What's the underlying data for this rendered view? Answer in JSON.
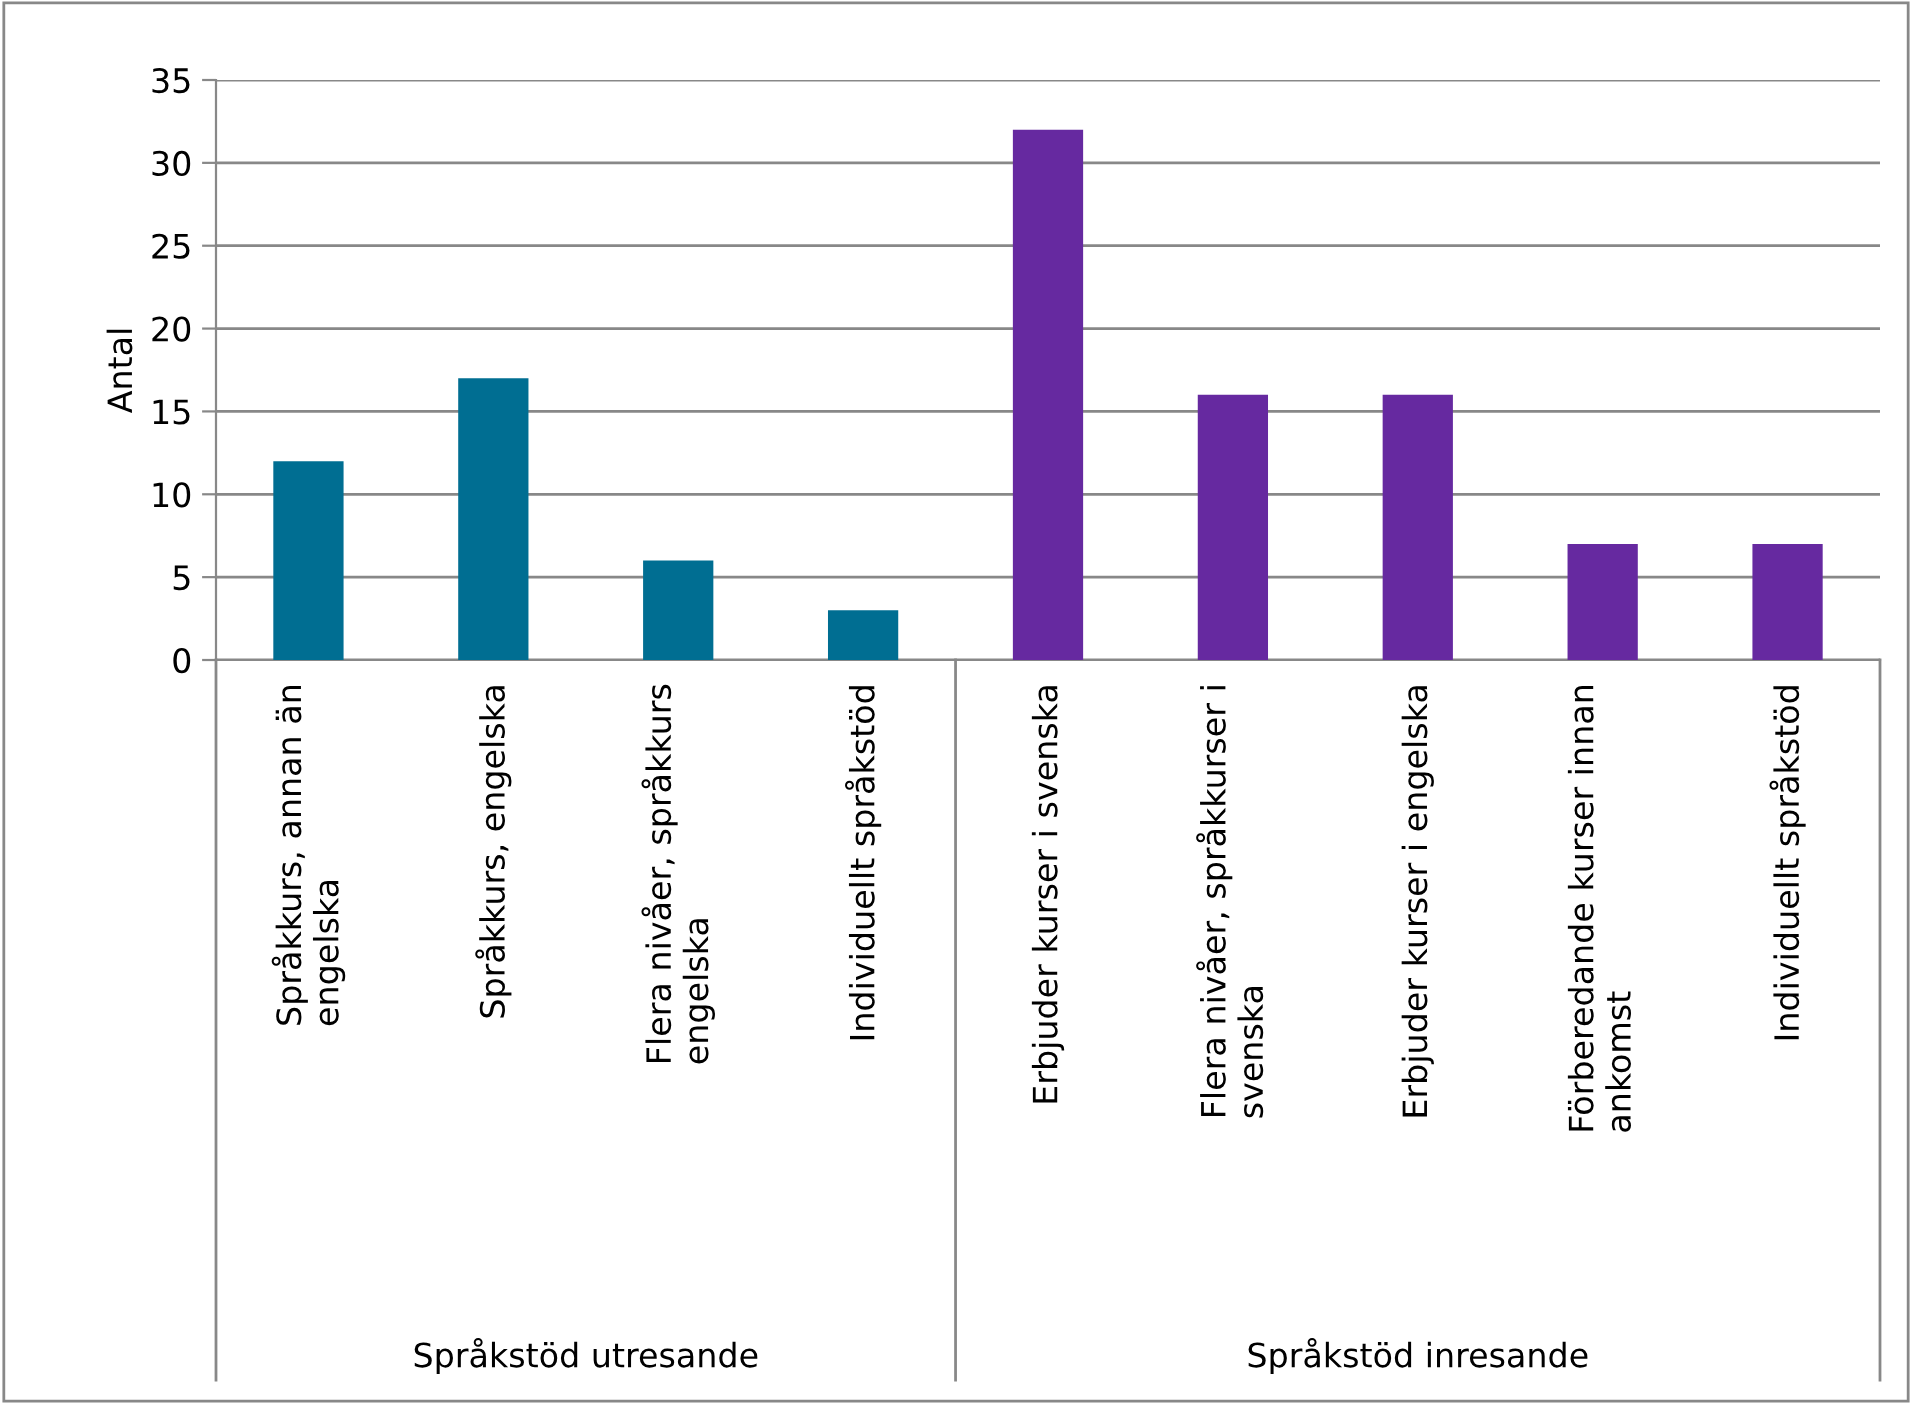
{
  "chart_data": {
    "type": "bar",
    "ylabel": "Antal",
    "categories": [
      "Språkkurs, annan än engelska",
      "Språkkurs, engelska",
      "Flera nivåer, språkkurs engelska",
      "Individuellt språkstöd",
      "Erbjuder kurser i svenska",
      "Flera nivåer, språkkurser i svenska",
      "Erbjuder kurser i engelska",
      "Förberedande kurser innan ankomst",
      "Individuellt språkstöd"
    ],
    "values": [
      12,
      17,
      6,
      3,
      32,
      16,
      16,
      7,
      7
    ],
    "colors": [
      "#006e92",
      "#006e92",
      "#006e92",
      "#006e92",
      "#6629a0",
      "#6629a0",
      "#6629a0",
      "#6629a0",
      "#6629a0"
    ],
    "annotations": [
      "Språkstöd utresande",
      "Språkstöd inresande"
    ],
    "ylim": [
      0,
      35
    ],
    "yticks": [
      0,
      5,
      10,
      15,
      20,
      25,
      30,
      35
    ],
    "grid": "y",
    "legend": false
  }
}
